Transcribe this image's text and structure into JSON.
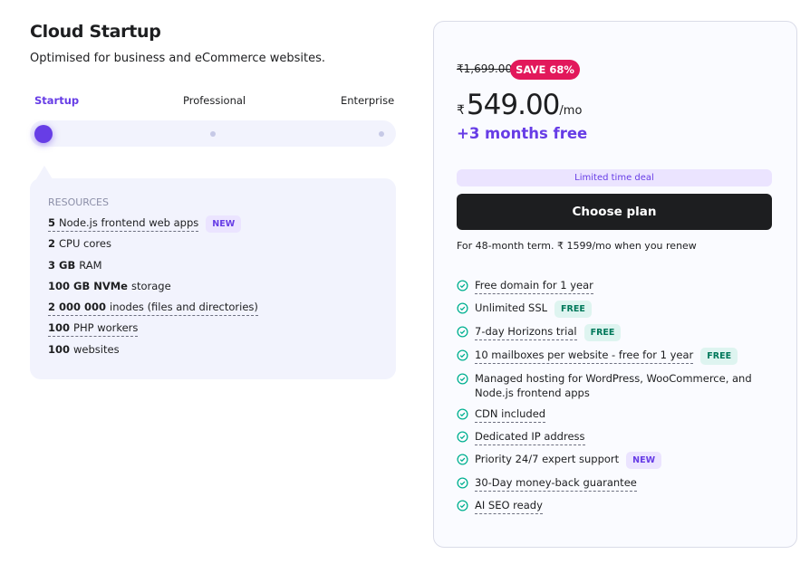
{
  "plan": {
    "title": "Cloud Startup",
    "subtitle": "Optimised for business and eCommerce websites."
  },
  "tiers": [
    {
      "label": "Startup",
      "active": true
    },
    {
      "label": "Professional"
    },
    {
      "label": "Enterprise"
    }
  ],
  "resources": {
    "heading": "RESOURCES",
    "items": [
      {
        "bold": "5",
        "text": "Node.js frontend web apps",
        "underline": true,
        "badge": "NEW"
      },
      {
        "bold": "2",
        "text": "CPU cores"
      },
      {
        "bold": "3 GB",
        "text": "RAM"
      },
      {
        "bold": "100 GB NVMe",
        "text": "storage"
      },
      {
        "bold": "2 000 000",
        "text": "inodes (files and directories)",
        "underline": true
      },
      {
        "bold": "100",
        "text": "PHP workers",
        "underline": true
      },
      {
        "bold": "100",
        "text": "websites"
      }
    ]
  },
  "pricing": {
    "old_price": "₹1,699.00",
    "save_badge": "SAVE 68%",
    "currency": "₹",
    "price": "549.00",
    "per": "/mo",
    "bonus": "+3 months free",
    "deal": "Limited time deal",
    "cta": "Choose plan",
    "renew": "For 48-month term. ₹ 1599/mo when you renew"
  },
  "features": [
    {
      "text": "Free domain for 1 year",
      "underline": true
    },
    {
      "text": "Unlimited SSL",
      "badge": "FREE"
    },
    {
      "text": "7-day Horizons trial",
      "underline": true,
      "badge": "FREE"
    },
    {
      "text": "10 mailboxes per website - free for 1 year",
      "underline": true,
      "badge": "FREE"
    },
    {
      "text": "Managed hosting for WordPress, WooCommerce, and Node.js frontend apps"
    },
    {
      "text": "CDN included",
      "underline": true
    },
    {
      "text": "Dedicated IP address",
      "underline": true
    },
    {
      "text": "Priority 24/7 expert support",
      "badge": "NEW"
    },
    {
      "text": "30-Day money-back guarantee",
      "underline": true
    },
    {
      "text": "AI SEO ready",
      "underline": true
    }
  ],
  "colors": {
    "accent": "#673de6",
    "save": "#e2185b",
    "check": "#00b090",
    "button": "#1d1e20"
  }
}
